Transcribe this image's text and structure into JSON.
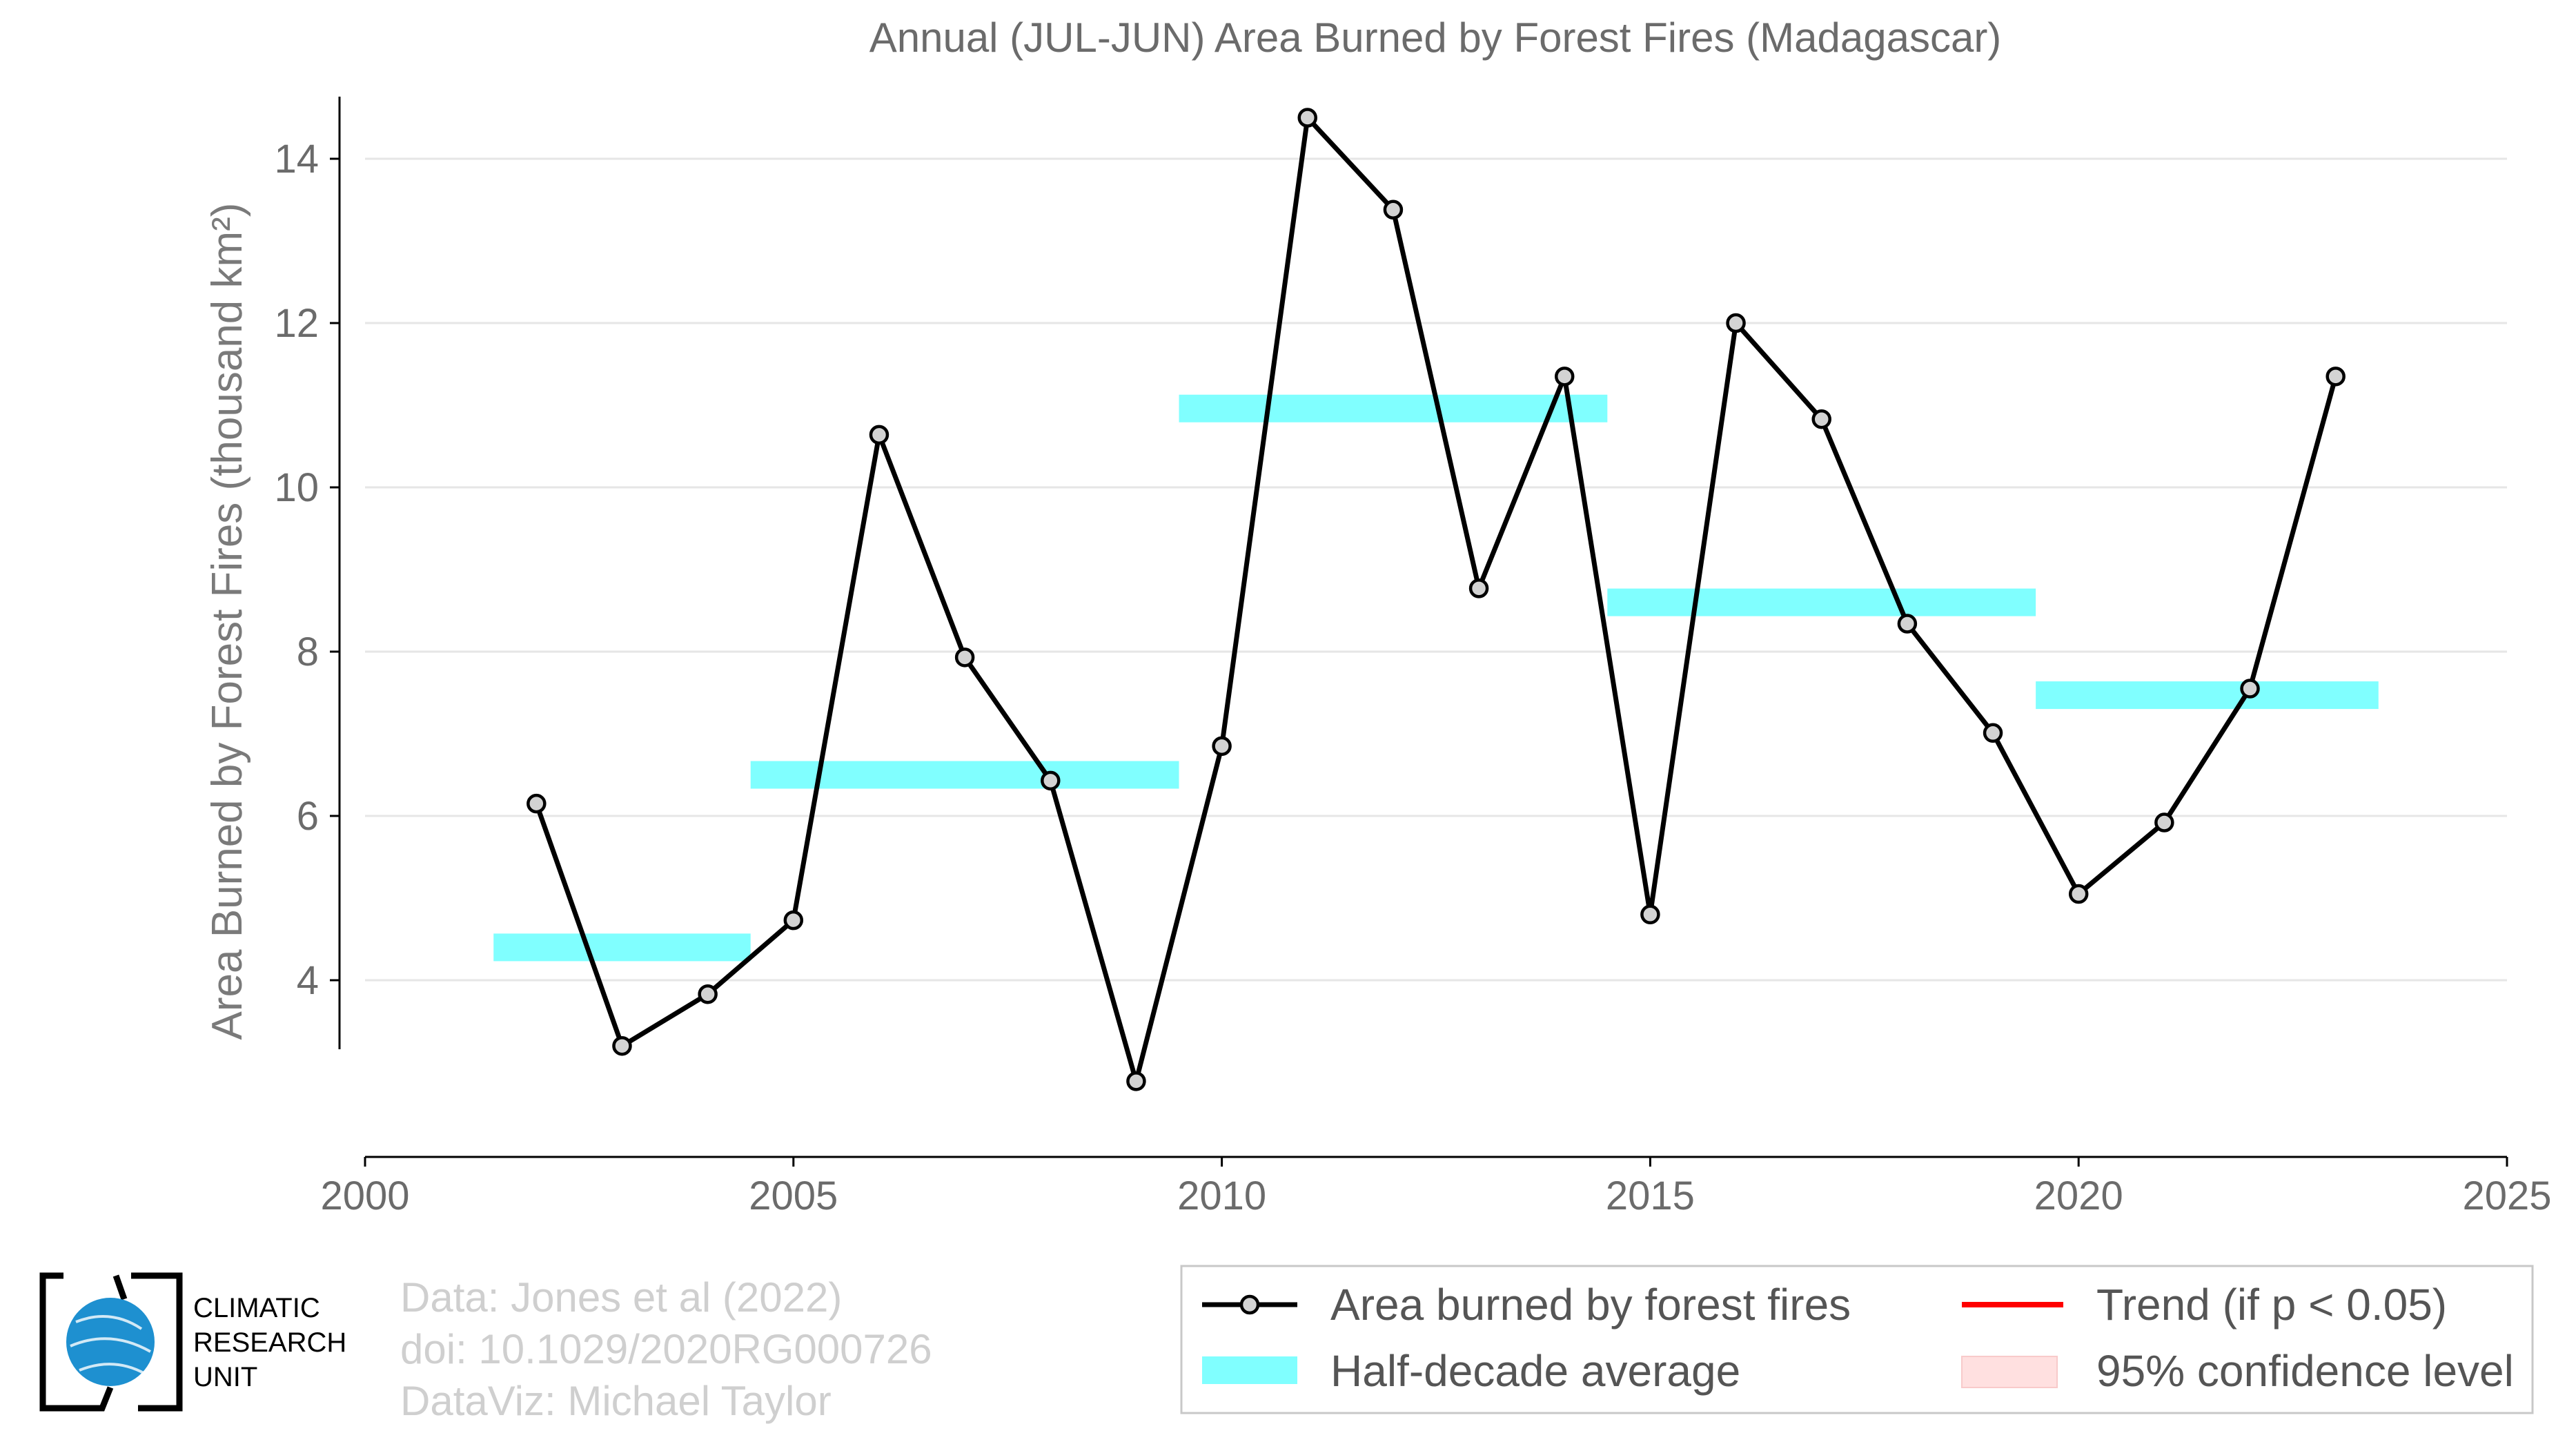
{
  "chart_data": {
    "type": "line",
    "title": "Annual (JUL-JUN) Area Burned by Forest Fires (Madagascar)",
    "xlabel": "",
    "ylabel": "Area Burned by Forest Fires (thousand km²)",
    "xlim": [
      2000,
      2025
    ],
    "ylim": [
      2,
      14.5
    ],
    "xticks": [
      2000,
      2005,
      2010,
      2015,
      2020,
      2025
    ],
    "yticks": [
      4,
      6,
      8,
      10,
      12,
      14
    ],
    "grid": "horizontal",
    "legend_position": "bottom-right",
    "series": [
      {
        "name": "Area burned by forest fires",
        "x": [
          2002,
          2003,
          2004,
          2005,
          2006,
          2007,
          2008,
          2009,
          2010,
          2011,
          2012,
          2013,
          2014,
          2015,
          2016,
          2017,
          2018,
          2019,
          2020,
          2021,
          2022,
          2023
        ],
        "values": [
          6.15,
          3.2,
          3.83,
          4.73,
          10.64,
          7.93,
          6.43,
          2.77,
          6.85,
          14.5,
          13.38,
          8.77,
          11.35,
          4.8,
          12.0,
          10.83,
          8.34,
          7.01,
          5.05,
          5.92,
          7.55,
          11.35
        ]
      }
    ],
    "half_decade_average": {
      "name": "Half-decade average",
      "segments": [
        {
          "start": 2001.5,
          "end": 2004.5,
          "value": 4.4
        },
        {
          "start": 2004.5,
          "end": 2009.5,
          "value": 6.5
        },
        {
          "start": 2009.5,
          "end": 2014.5,
          "value": 10.96
        },
        {
          "start": 2014.5,
          "end": 2019.5,
          "value": 8.6
        },
        {
          "start": 2019.5,
          "end": 2023.5,
          "value": 7.47
        }
      ]
    },
    "legend": {
      "entries": [
        {
          "label": "Area burned by forest fires"
        },
        {
          "label": "Trend (if p < 0.05)"
        },
        {
          "label": "Half-decade average"
        },
        {
          "label": "95% confidence level"
        }
      ]
    },
    "colors": {
      "line": "#000000",
      "marker_fill": "#d3d3d3",
      "half_decade": "#80ffff",
      "trend": "#ff0000",
      "confidence": "#ffe0e0",
      "grid": "#e6e6e6",
      "text": "#6b6b6b"
    }
  },
  "credits": {
    "line1": "Data: Jones et al (2022)",
    "line2": "doi: 10.1029/2020RG000726",
    "line3": "DataViz: Michael Taylor"
  },
  "logo": {
    "line1": "CLIMATIC",
    "line2": "RESEARCH",
    "line3": "UNIT",
    "icon": "globe-icon",
    "globe_color": "#1e90d0"
  }
}
